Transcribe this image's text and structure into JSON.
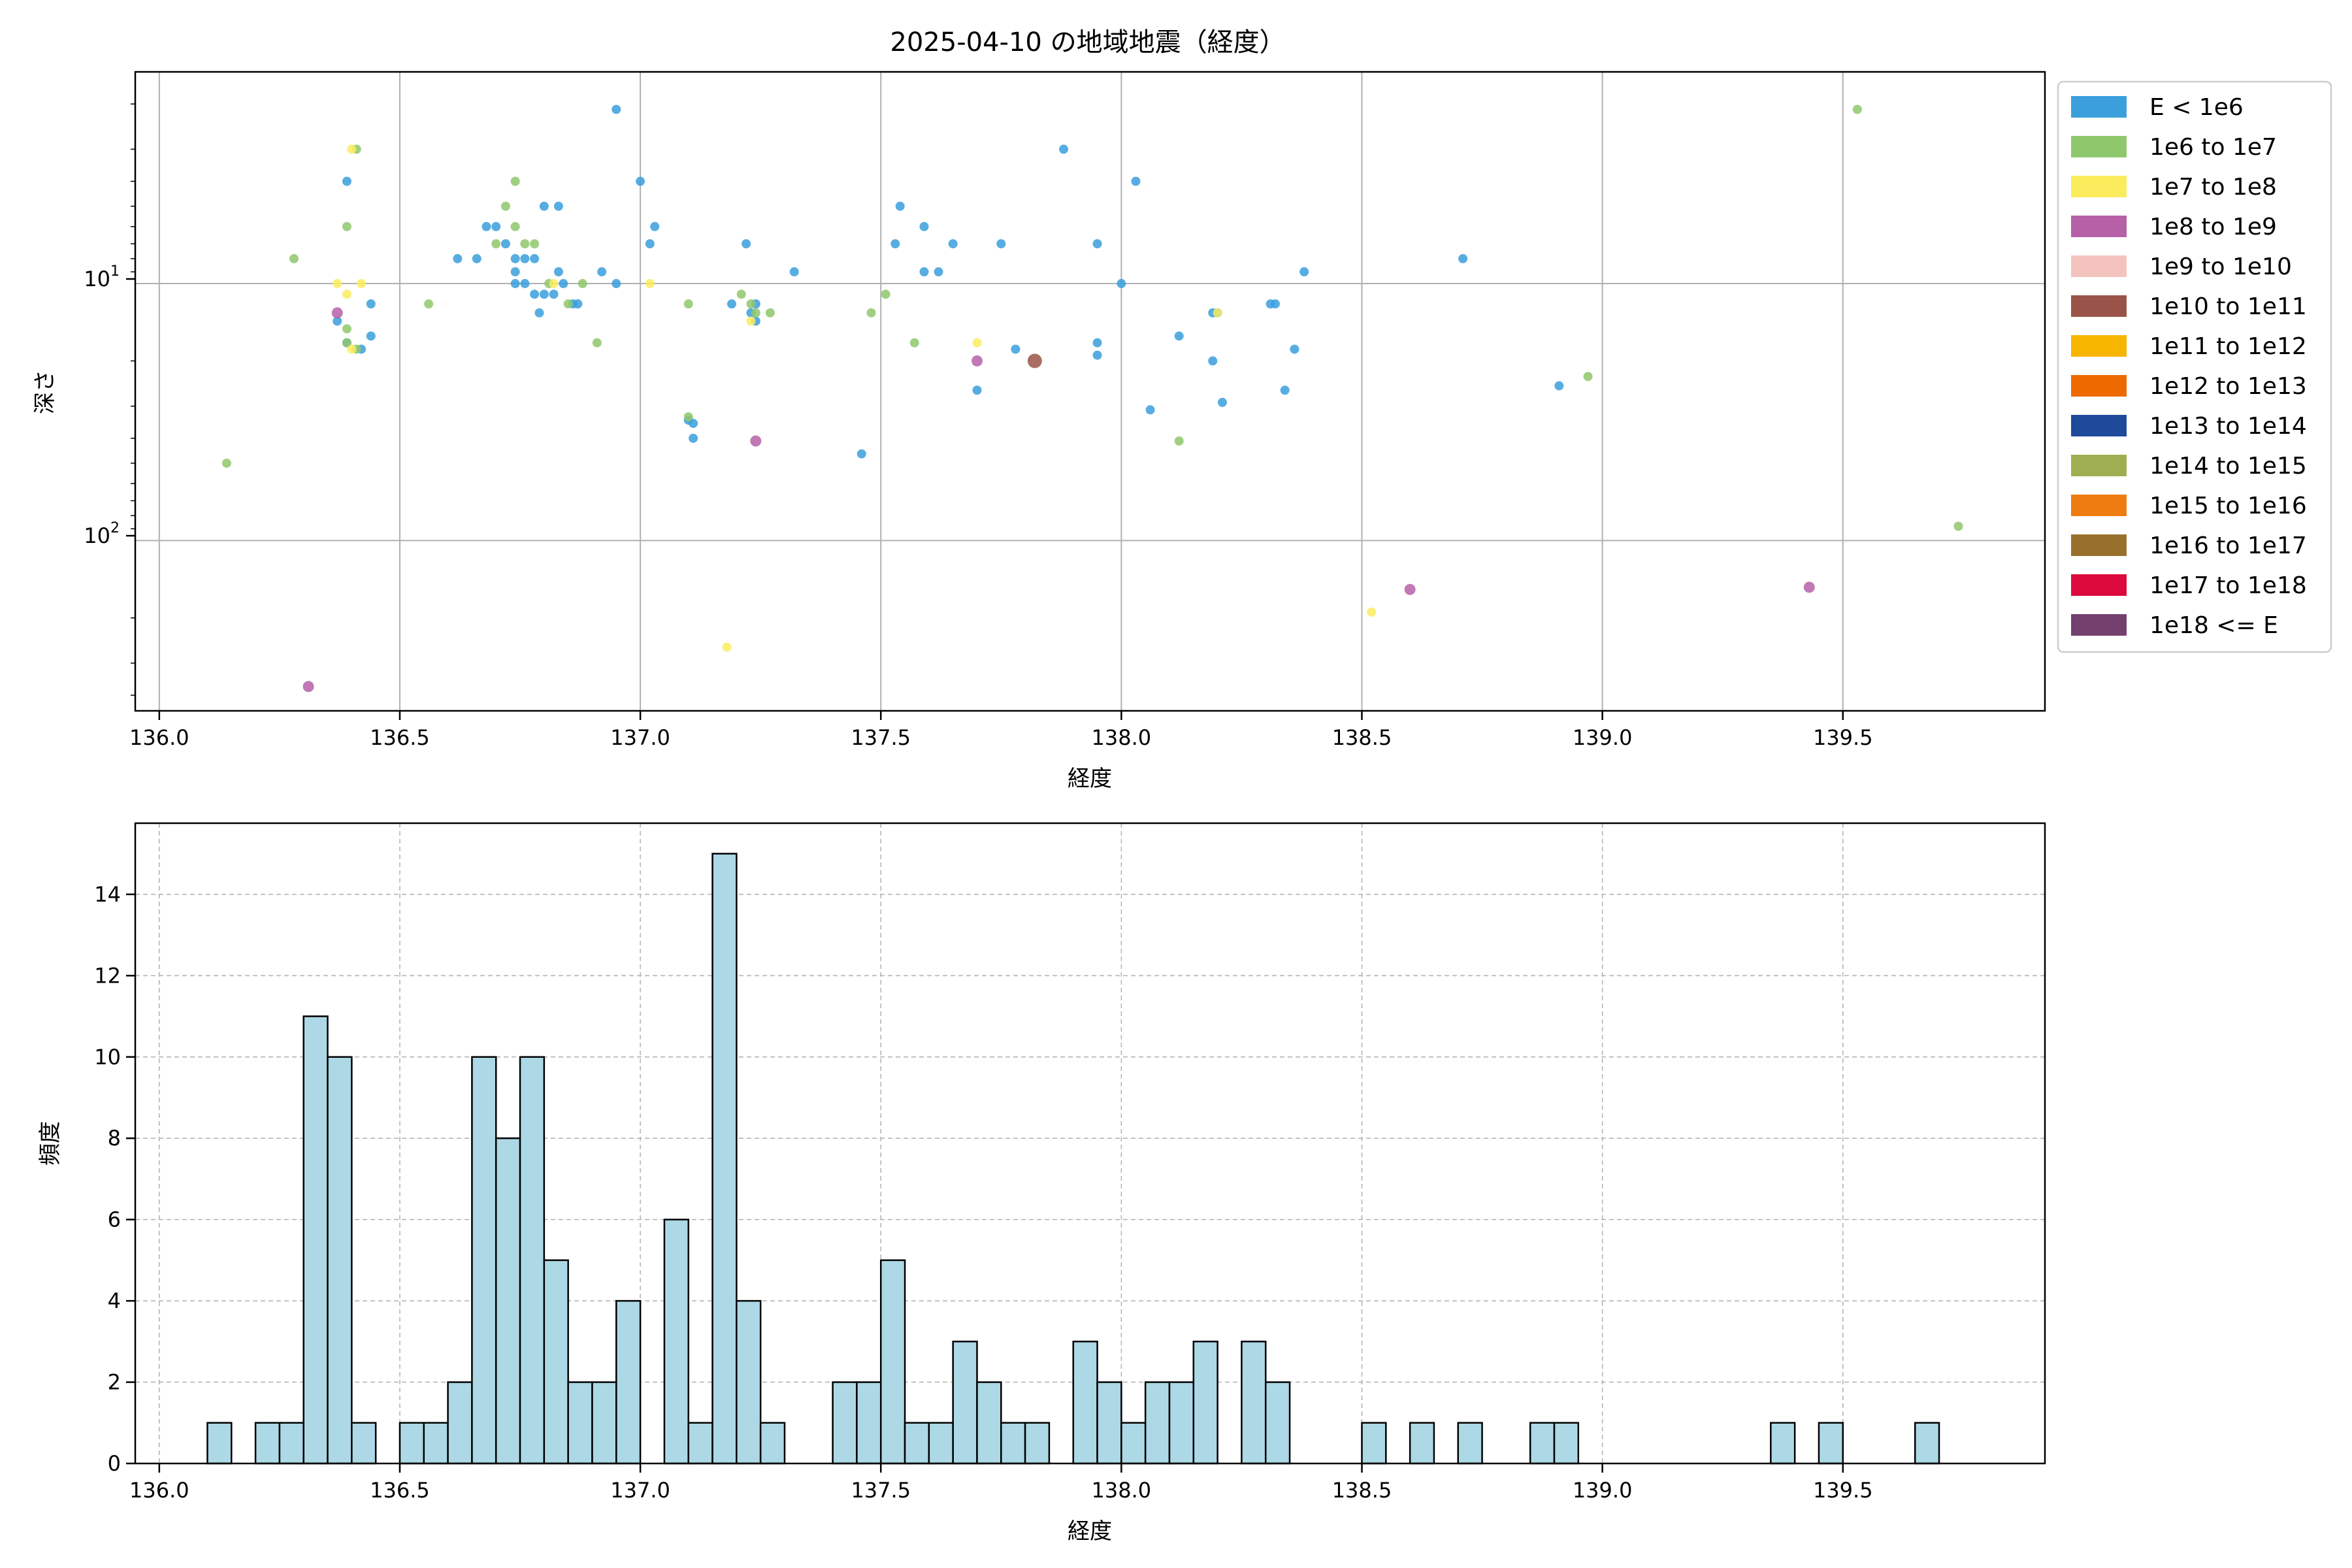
{
  "chart_data": [
    {
      "type": "scatter",
      "title": "2025-04-10 の地域地震（経度）",
      "xlabel": "経度",
      "ylabel": "深さ",
      "xlim": [
        135.95,
        139.92
      ],
      "ylim": [
        460,
        1.5
      ],
      "y_scale": "log",
      "y_inverted": true,
      "x_ticks": [
        "136.0",
        "136.5",
        "137.0",
        "137.5",
        "138.0",
        "138.5",
        "139.0",
        "139.5"
      ],
      "y_ticks": [
        "10^1",
        "10^2"
      ],
      "grid": true,
      "legend_placement": "outside right",
      "legend": [
        {
          "label": "E < 1e6",
          "color": "#3a9fdc"
        },
        {
          "label": "1e6 to 1e7",
          "color": "#8fc76c"
        },
        {
          "label": "1e7 to 1e8",
          "color": "#fbec5d"
        },
        {
          "label": "1e8 to 1e9",
          "color": "#b660a8"
        },
        {
          "label": "1e9 to 1e10",
          "color": "#f5c3bd"
        },
        {
          "label": "1e10 to 1e11",
          "color": "#9a5348"
        },
        {
          "label": "1e11 to 1e12",
          "color": "#f7b500"
        },
        {
          "label": "1e12 to 1e13",
          "color": "#ee6a00"
        },
        {
          "label": "1e13 to 1e14",
          "color": "#1d4a9a"
        },
        {
          "label": "1e14 to 1e15",
          "color": "#9fae50"
        },
        {
          "label": "1e15 to 1e16",
          "color": "#ef7c10"
        },
        {
          "label": "1e16 to 1e17",
          "color": "#98702c"
        },
        {
          "label": "1e17 to 1e18",
          "color": "#dc0a3c"
        },
        {
          "label": "1e18 <= E",
          "color": "#74406e"
        }
      ],
      "points": [
        {
          "x": 136.95,
          "y": 2.1,
          "c": 0
        },
        {
          "x": 136.39,
          "y": 4.0,
          "c": 0
        },
        {
          "x": 136.66,
          "y": 8.0,
          "c": 0
        },
        {
          "x": 136.68,
          "y": 6.0,
          "c": 0
        },
        {
          "x": 136.7,
          "y": 6.0,
          "c": 0
        },
        {
          "x": 136.72,
          "y": 7.0,
          "c": 0
        },
        {
          "x": 136.74,
          "y": 8.0,
          "c": 0
        },
        {
          "x": 136.76,
          "y": 8.0,
          "c": 0
        },
        {
          "x": 136.78,
          "y": 8.0,
          "c": 0
        },
        {
          "x": 136.8,
          "y": 5.0,
          "c": 0
        },
        {
          "x": 136.83,
          "y": 5.0,
          "c": 0
        },
        {
          "x": 136.74,
          "y": 9.0,
          "c": 0
        },
        {
          "x": 136.76,
          "y": 10.0,
          "c": 0
        },
        {
          "x": 136.74,
          "y": 10.0,
          "c": 0
        },
        {
          "x": 136.78,
          "y": 11.0,
          "c": 0
        },
        {
          "x": 136.8,
          "y": 11.0,
          "c": 0
        },
        {
          "x": 136.82,
          "y": 11.0,
          "c": 0
        },
        {
          "x": 136.83,
          "y": 9.0,
          "c": 0
        },
        {
          "x": 136.84,
          "y": 10.0,
          "c": 0
        },
        {
          "x": 136.79,
          "y": 13.0,
          "c": 0
        },
        {
          "x": 136.86,
          "y": 12.0,
          "c": 0
        },
        {
          "x": 136.87,
          "y": 12.0,
          "c": 0
        },
        {
          "x": 136.62,
          "y": 8.0,
          "c": 0
        },
        {
          "x": 136.92,
          "y": 9.0,
          "c": 0
        },
        {
          "x": 136.95,
          "y": 10.0,
          "c": 0
        },
        {
          "x": 137.0,
          "y": 4.0,
          "c": 0
        },
        {
          "x": 137.02,
          "y": 7.0,
          "c": 0
        },
        {
          "x": 137.03,
          "y": 6.0,
          "c": 0
        },
        {
          "x": 136.37,
          "y": 14.0,
          "c": 0
        },
        {
          "x": 136.44,
          "y": 12.0,
          "c": 0
        },
        {
          "x": 136.44,
          "y": 16.0,
          "c": 0
        },
        {
          "x": 136.42,
          "y": 18.0,
          "c": 0
        },
        {
          "x": 136.39,
          "y": 17.0,
          "c": 0
        },
        {
          "x": 137.1,
          "y": 34.0,
          "c": 0
        },
        {
          "x": 137.11,
          "y": 40.0,
          "c": 0
        },
        {
          "x": 137.11,
          "y": 35.0,
          "c": 0
        },
        {
          "x": 137.19,
          "y": 12.0,
          "c": 0
        },
        {
          "x": 137.22,
          "y": 7.0,
          "c": 0
        },
        {
          "x": 137.23,
          "y": 13.0,
          "c": 0
        },
        {
          "x": 137.24,
          "y": 12.0,
          "c": 0
        },
        {
          "x": 137.24,
          "y": 14.0,
          "c": 0
        },
        {
          "x": 137.32,
          "y": 9.0,
          "c": 0
        },
        {
          "x": 137.46,
          "y": 46.0,
          "c": 0
        },
        {
          "x": 137.53,
          "y": 7.0,
          "c": 0
        },
        {
          "x": 137.54,
          "y": 5.0,
          "c": 0
        },
        {
          "x": 137.59,
          "y": 6.0,
          "c": 0
        },
        {
          "x": 137.59,
          "y": 9.0,
          "c": 0
        },
        {
          "x": 137.62,
          "y": 9.0,
          "c": 0
        },
        {
          "x": 137.65,
          "y": 7.0,
          "c": 0
        },
        {
          "x": 137.7,
          "y": 26.0,
          "c": 0
        },
        {
          "x": 137.75,
          "y": 7.0,
          "c": 0
        },
        {
          "x": 137.78,
          "y": 18.0,
          "c": 0
        },
        {
          "x": 137.88,
          "y": 3.0,
          "c": 0
        },
        {
          "x": 137.95,
          "y": 7.0,
          "c": 0
        },
        {
          "x": 137.95,
          "y": 17.0,
          "c": 0
        },
        {
          "x": 137.95,
          "y": 19.0,
          "c": 0
        },
        {
          "x": 138.0,
          "y": 10.0,
          "c": 0
        },
        {
          "x": 138.03,
          "y": 4.0,
          "c": 0
        },
        {
          "x": 138.06,
          "y": 31.0,
          "c": 0
        },
        {
          "x": 138.12,
          "y": 16.0,
          "c": 0
        },
        {
          "x": 138.19,
          "y": 13.0,
          "c": 0
        },
        {
          "x": 138.2,
          "y": 13.0,
          "c": 0
        },
        {
          "x": 138.19,
          "y": 20.0,
          "c": 0
        },
        {
          "x": 138.21,
          "y": 29.0,
          "c": 0
        },
        {
          "x": 138.31,
          "y": 12.0,
          "c": 0
        },
        {
          "x": 138.32,
          "y": 12.0,
          "c": 0
        },
        {
          "x": 138.34,
          "y": 26.0,
          "c": 0
        },
        {
          "x": 138.36,
          "y": 18.0,
          "c": 0
        },
        {
          "x": 138.38,
          "y": 9.0,
          "c": 0
        },
        {
          "x": 138.71,
          "y": 8.0,
          "c": 0
        },
        {
          "x": 138.91,
          "y": 25.0,
          "c": 0
        },
        {
          "x": 136.14,
          "y": 50.0,
          "c": 1
        },
        {
          "x": 136.28,
          "y": 8.0,
          "c": 1
        },
        {
          "x": 136.39,
          "y": 6.0,
          "c": 1
        },
        {
          "x": 136.41,
          "y": 3.0,
          "c": 1
        },
        {
          "x": 136.39,
          "y": 15.0,
          "c": 1
        },
        {
          "x": 136.41,
          "y": 18.0,
          "c": 1
        },
        {
          "x": 136.39,
          "y": 17.0,
          "c": 1
        },
        {
          "x": 136.56,
          "y": 12.0,
          "c": 1
        },
        {
          "x": 136.7,
          "y": 7.0,
          "c": 1
        },
        {
          "x": 136.72,
          "y": 5.0,
          "c": 1
        },
        {
          "x": 136.74,
          "y": 4.0,
          "c": 1
        },
        {
          "x": 136.74,
          "y": 6.0,
          "c": 1
        },
        {
          "x": 136.76,
          "y": 7.0,
          "c": 1
        },
        {
          "x": 136.78,
          "y": 7.0,
          "c": 1
        },
        {
          "x": 136.81,
          "y": 10.0,
          "c": 1
        },
        {
          "x": 136.85,
          "y": 12.0,
          "c": 1
        },
        {
          "x": 136.88,
          "y": 10.0,
          "c": 1
        },
        {
          "x": 136.91,
          "y": 17.0,
          "c": 1
        },
        {
          "x": 137.1,
          "y": 12.0,
          "c": 1
        },
        {
          "x": 137.1,
          "y": 33.0,
          "c": 1
        },
        {
          "x": 137.21,
          "y": 11.0,
          "c": 1
        },
        {
          "x": 137.23,
          "y": 12.0,
          "c": 1
        },
        {
          "x": 137.24,
          "y": 13.0,
          "c": 1
        },
        {
          "x": 137.27,
          "y": 13.0,
          "c": 1
        },
        {
          "x": 137.48,
          "y": 13.0,
          "c": 1
        },
        {
          "x": 137.51,
          "y": 11.0,
          "c": 1
        },
        {
          "x": 137.57,
          "y": 17.0,
          "c": 1
        },
        {
          "x": 138.12,
          "y": 41.0,
          "c": 1
        },
        {
          "x": 138.97,
          "y": 23.0,
          "c": 1
        },
        {
          "x": 139.53,
          "y": 2.1,
          "c": 1
        },
        {
          "x": 139.74,
          "y": 88.0,
          "c": 1
        },
        {
          "x": 136.37,
          "y": 10.0,
          "c": 2
        },
        {
          "x": 136.39,
          "y": 11.0,
          "c": 2
        },
        {
          "x": 136.4,
          "y": 3.0,
          "c": 2
        },
        {
          "x": 136.4,
          "y": 18.0,
          "c": 2
        },
        {
          "x": 136.42,
          "y": 10.0,
          "c": 2
        },
        {
          "x": 136.82,
          "y": 10.0,
          "c": 2
        },
        {
          "x": 137.02,
          "y": 10.0,
          "c": 2
        },
        {
          "x": 137.18,
          "y": 260.0,
          "c": 2
        },
        {
          "x": 137.23,
          "y": 14.0,
          "c": 2
        },
        {
          "x": 137.7,
          "y": 17.0,
          "c": 2
        },
        {
          "x": 138.2,
          "y": 13.0,
          "c": 2
        },
        {
          "x": 138.52,
          "y": 190.0,
          "c": 2
        },
        {
          "x": 136.31,
          "y": 370.0,
          "c": 3
        },
        {
          "x": 136.37,
          "y": 13.0,
          "c": 3
        },
        {
          "x": 137.24,
          "y": 41.0,
          "c": 3
        },
        {
          "x": 137.7,
          "y": 20.0,
          "c": 3
        },
        {
          "x": 138.6,
          "y": 155.0,
          "c": 3
        },
        {
          "x": 139.43,
          "y": 152.0,
          "c": 3
        },
        {
          "x": 137.82,
          "y": 20.0,
          "c": 5
        }
      ]
    },
    {
      "type": "bar",
      "title": "",
      "xlabel": "経度",
      "ylabel": "頻度",
      "xlim": [
        135.95,
        139.92
      ],
      "ylim": [
        0,
        15.75
      ],
      "x_ticks": [
        "136.0",
        "136.5",
        "137.0",
        "137.5",
        "138.0",
        "138.5",
        "139.0",
        "139.5"
      ],
      "y_ticks": [
        "0",
        "2",
        "4",
        "6",
        "8",
        "10",
        "12",
        "14"
      ],
      "grid": true,
      "bar_color": "#add8e6",
      "bin_start": 136.1,
      "bin_width": 0.05,
      "values": [
        1,
        0,
        1,
        1,
        11,
        10,
        1,
        0,
        1,
        1,
        2,
        10,
        8,
        10,
        5,
        2,
        2,
        4,
        0,
        6,
        1,
        15,
        4,
        1,
        0,
        0,
        2,
        2,
        5,
        1,
        1,
        3,
        2,
        1,
        1,
        0,
        3,
        2,
        1,
        2,
        2,
        3,
        0,
        3,
        2,
        0,
        0,
        0,
        1,
        0,
        1,
        0,
        1,
        0,
        0,
        1,
        1,
        0,
        0,
        0,
        0,
        0,
        0,
        0,
        0,
        1,
        0,
        1,
        0,
        0,
        0,
        1
      ]
    }
  ]
}
